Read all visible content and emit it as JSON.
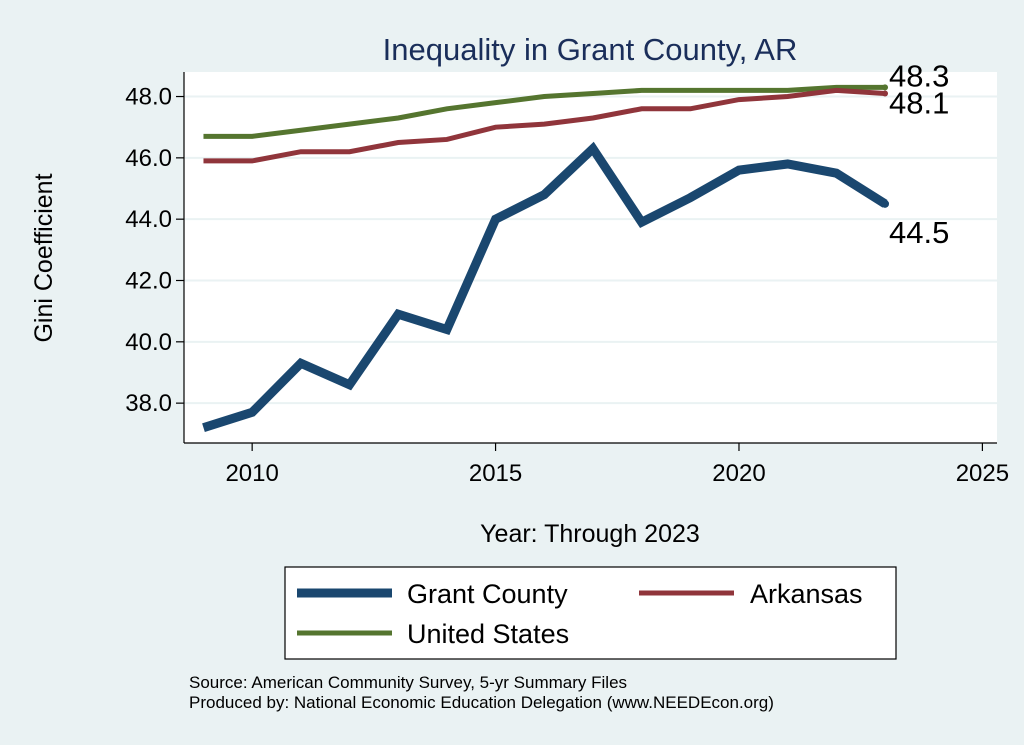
{
  "chart_data": {
    "type": "line",
    "title": "Inequality in Grant County, AR",
    "xlabel": "Year: Through 2023",
    "ylabel": "Gini Coefficient",
    "xlim": [
      2008.6,
      2025.3
    ],
    "ylim": [
      36.7,
      48.8
    ],
    "x_ticks": [
      2010,
      2015,
      2020,
      2025
    ],
    "y_ticks": [
      38,
      40,
      42,
      44,
      46,
      48
    ],
    "y_tick_labels": [
      "38.0",
      "40.0",
      "42.0",
      "44.0",
      "46.0",
      "48.0"
    ],
    "grid": true,
    "x": [
      2009,
      2010,
      2011,
      2012,
      2013,
      2014,
      2015,
      2016,
      2017,
      2018,
      2019,
      2020,
      2021,
      2022,
      2023
    ],
    "series": [
      {
        "name": "Grant County",
        "color": "#1a476f",
        "width": 9,
        "values": [
          37.2,
          37.7,
          39.3,
          38.6,
          40.9,
          40.4,
          44.0,
          44.8,
          46.3,
          43.9,
          44.7,
          45.6,
          45.8,
          45.5,
          44.5
        ],
        "end_label": "44.5"
      },
      {
        "name": "Arkansas",
        "color": "#90353b",
        "width": 5,
        "values": [
          45.9,
          45.9,
          46.2,
          46.2,
          46.5,
          46.6,
          47.0,
          47.1,
          47.3,
          47.6,
          47.6,
          47.9,
          48.0,
          48.2,
          48.1
        ],
        "end_label": "48.1"
      },
      {
        "name": "United States",
        "color": "#55752f",
        "width": 5,
        "values": [
          46.7,
          46.7,
          46.9,
          47.1,
          47.3,
          47.6,
          47.8,
          48.0,
          48.1,
          48.2,
          48.2,
          48.2,
          48.2,
          48.3,
          48.3
        ],
        "end_label": "48.3"
      }
    ],
    "legend": {
      "position": "bottom",
      "items": [
        "Grant County",
        "Arkansas",
        "United States"
      ]
    },
    "notes": [
      "Source: American Community Survey, 5-yr Summary Files",
      "Produced by: National Economic Education Delegation (www.NEEDEcon.org)"
    ]
  },
  "colors": {
    "background": "#eaf2f3",
    "plot_bg": "#ffffff",
    "title": "#1a2e5a",
    "grid": "#eaf2f3"
  }
}
